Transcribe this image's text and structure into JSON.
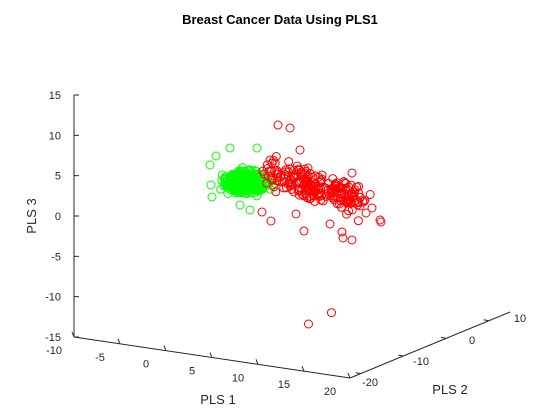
{
  "chart_data": {
    "type": "scatter3d",
    "title": "Breast Cancer Data Using PLS1",
    "xlabel": "PLS 1",
    "ylabel": "PLS 2",
    "zlabel": "PLS 3",
    "x_ticks": [
      "-10",
      "-5",
      "0",
      "5",
      "10",
      "15",
      "20"
    ],
    "y_ticks": [
      "-20",
      "-10",
      "0",
      "10"
    ],
    "z_ticks": [
      "15",
      "10",
      "5",
      "0",
      "-5",
      "-10",
      "-15"
    ],
    "xlim": [
      -10,
      20
    ],
    "ylim": [
      -20,
      15
    ],
    "zlim": [
      -15,
      15
    ],
    "grid": false,
    "legend": "none",
    "series_colors": {
      "benign": "#00ff00",
      "malignant": "#ff0000"
    },
    "cluster_summary": [
      {
        "color": "#00ff00",
        "x_range": [
          -6,
          3
        ],
        "z_range": [
          1,
          8
        ],
        "approx_points": 357
      },
      {
        "color": "#ff0000",
        "x_range": [
          1,
          19
        ],
        "z_range": [
          -3,
          11
        ],
        "approx_points": 212
      }
    ],
    "outliers": [
      {
        "x": 14.5,
        "y": -16,
        "z": -9.7,
        "color": "#ff0000"
      },
      {
        "x": 16,
        "y": -12,
        "z": -8.5,
        "color": "#ff0000"
      }
    ]
  }
}
